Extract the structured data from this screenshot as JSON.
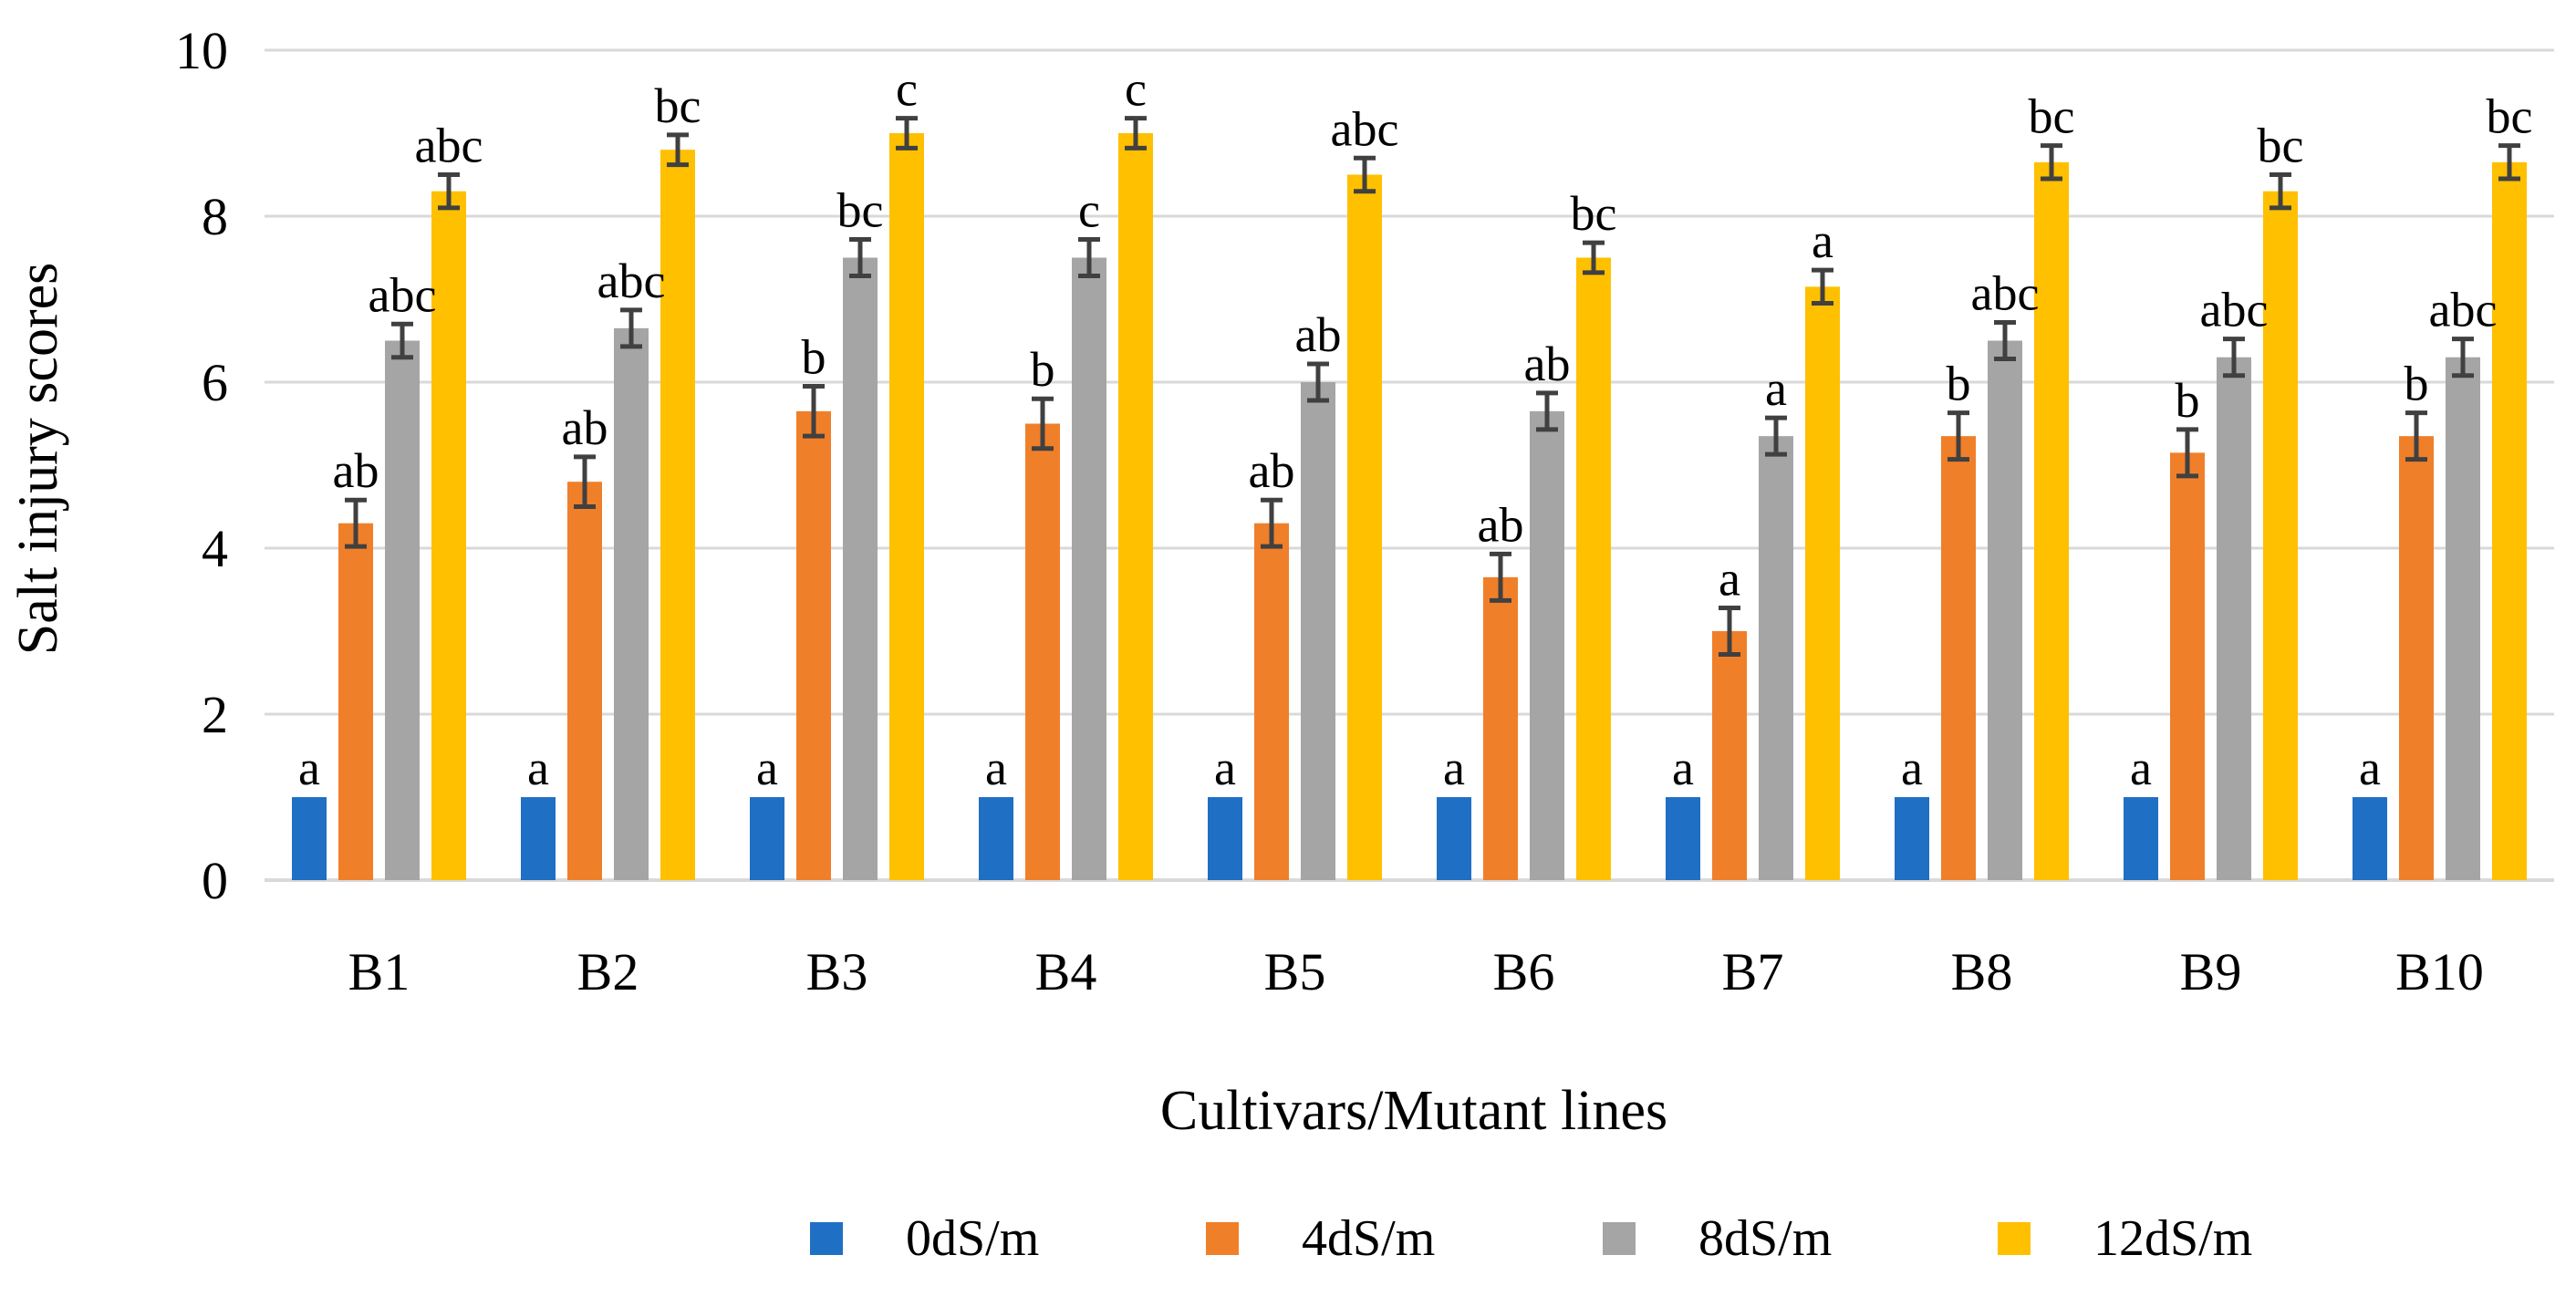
{
  "chart_data": {
    "type": "bar",
    "title": "",
    "xlabel": "Cultivars/Mutant lines",
    "ylabel": "Salt injury scores",
    "ylim": [
      0,
      10
    ],
    "yticks": [
      0,
      2,
      4,
      6,
      8,
      10
    ],
    "grid": true,
    "legend_position": "bottom",
    "categories": [
      "B1",
      "B2",
      "B3",
      "B4",
      "B5",
      "B6",
      "B7",
      "B8",
      "B9",
      "B10"
    ],
    "series": [
      {
        "name": "0dS/m",
        "color": "#1f6fc4",
        "values": [
          1,
          1,
          1,
          1,
          1,
          1,
          1,
          1,
          1,
          1
        ],
        "errors": [
          0,
          0,
          0,
          0,
          0,
          0,
          0,
          0,
          0,
          0
        ],
        "labels": [
          "a",
          "a",
          "a",
          "a",
          "a",
          "a",
          "a",
          "a",
          "a",
          "a"
        ]
      },
      {
        "name": "4dS/m",
        "color": "#f07f2a",
        "values": [
          4.3,
          4.8,
          5.65,
          5.5,
          4.3,
          3.65,
          3.0,
          5.35,
          5.15,
          5.35
        ],
        "errors": [
          0.28,
          0.3,
          0.3,
          0.3,
          0.28,
          0.28,
          0.28,
          0.28,
          0.28,
          0.28
        ],
        "labels": [
          "ab",
          "ab",
          "b",
          "b",
          "ab",
          "ab",
          "a",
          "b",
          "b",
          "b"
        ]
      },
      {
        "name": "8dS/m",
        "color": "#a5a5a5",
        "values": [
          6.5,
          6.65,
          7.5,
          7.5,
          6.0,
          5.65,
          5.35,
          6.5,
          6.3,
          6.3
        ],
        "errors": [
          0.2,
          0.22,
          0.22,
          0.22,
          0.22,
          0.22,
          0.22,
          0.22,
          0.22,
          0.22
        ],
        "labels": [
          "abc",
          "abc",
          "bc",
          "c",
          "ab",
          "ab",
          "a",
          "abc",
          "abc",
          "abc"
        ]
      },
      {
        "name": "12dS/m",
        "color": "#ffc000",
        "values": [
          8.3,
          8.8,
          9.0,
          9.0,
          8.5,
          7.5,
          7.15,
          8.65,
          8.3,
          8.65
        ],
        "errors": [
          0.2,
          0.18,
          0.18,
          0.18,
          0.2,
          0.18,
          0.2,
          0.2,
          0.2,
          0.2
        ],
        "labels": [
          "abc",
          "bc",
          "c",
          "c",
          "abc",
          "bc",
          "a",
          "bc",
          "bc",
          "bc"
        ]
      }
    ]
  }
}
